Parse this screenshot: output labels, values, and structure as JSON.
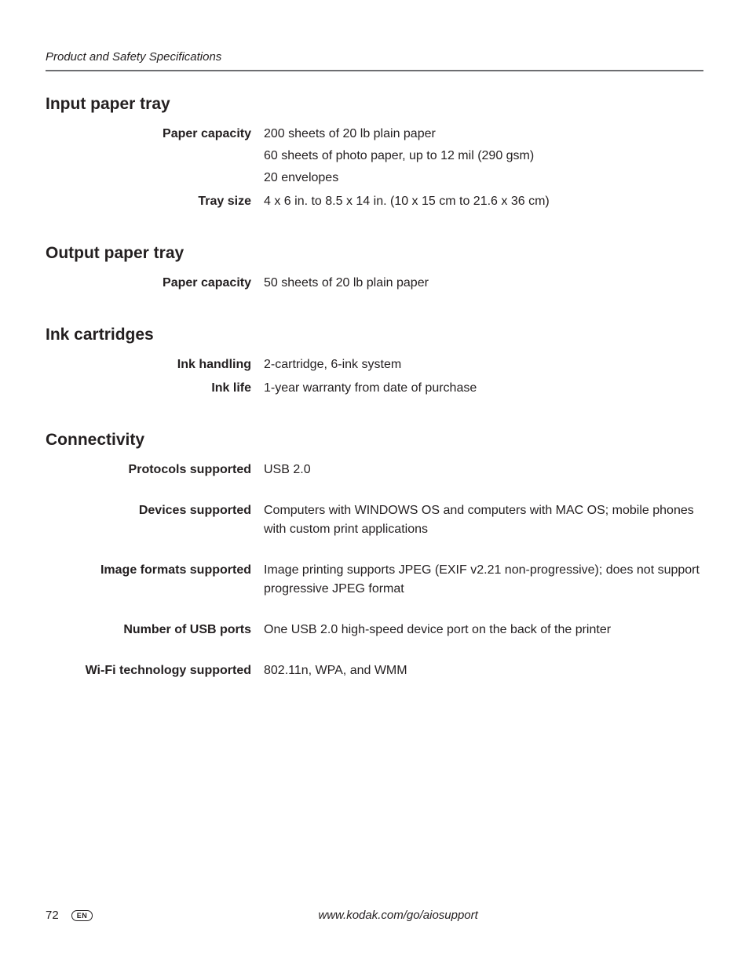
{
  "header": {
    "running_head": "Product and Safety Specifications"
  },
  "sections": {
    "input_tray": {
      "title": "Input paper tray",
      "rows": [
        {
          "label": "Paper capacity",
          "lines": [
            "200 sheets of 20 lb plain paper",
            "60 sheets of photo paper, up to 12 mil (290 gsm)",
            "20 envelopes"
          ]
        },
        {
          "label": "Tray size",
          "lines": [
            "4 x 6 in. to 8.5 x 14 in. (10 x 15 cm to 21.6 x 36 cm)"
          ]
        }
      ]
    },
    "output_tray": {
      "title": "Output paper tray",
      "rows": [
        {
          "label": "Paper capacity",
          "lines": [
            "50 sheets of 20 lb plain paper"
          ]
        }
      ]
    },
    "ink": {
      "title": "Ink cartridges",
      "rows": [
        {
          "label": "Ink handling",
          "lines": [
            "2-cartridge, 6-ink system"
          ]
        },
        {
          "label": "Ink life",
          "lines": [
            "1-year warranty from date of purchase"
          ]
        }
      ]
    },
    "connectivity": {
      "title": "Connectivity",
      "rows": [
        {
          "label": "Protocols supported",
          "lines": [
            "USB 2.0"
          ]
        },
        {
          "label": "Devices supported",
          "lines": [
            "Computers with WINDOWS OS and computers with MAC OS; mobile phones with custom print applications"
          ]
        },
        {
          "label": "Image formats supported",
          "lines": [
            "Image printing supports JPEG (EXIF v2.21 non-progressive); does not support progressive JPEG format"
          ]
        },
        {
          "label": "Number of USB ports",
          "lines": [
            "One USB 2.0 high-speed device port on the back of the printer"
          ]
        },
        {
          "label": "Wi-Fi technology supported",
          "lines": [
            "802.11n, WPA, and WMM"
          ]
        }
      ]
    }
  },
  "footer": {
    "page_number": "72",
    "lang_badge": "EN",
    "url": "www.kodak.com/go/aiosupport"
  }
}
